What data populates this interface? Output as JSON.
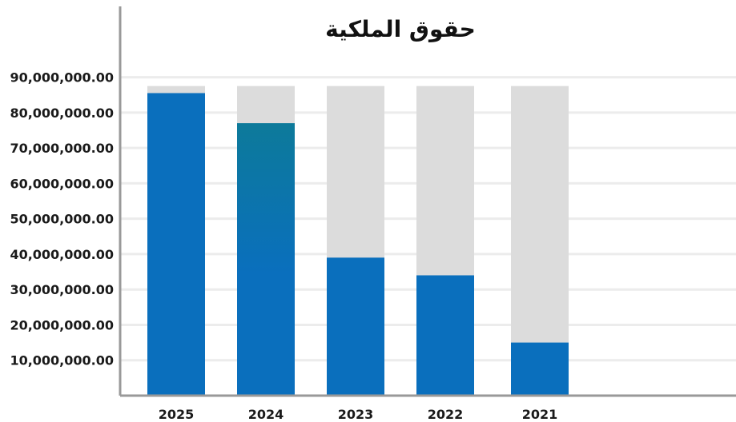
{
  "chart_data": {
    "type": "bar",
    "title": "حقوق الملكية",
    "xlabel": "",
    "ylabel": "",
    "categories": [
      "2025",
      "2024",
      "2023",
      "2022",
      "2021"
    ],
    "values": [
      85500000,
      77000000,
      39000000,
      34000000,
      15000000
    ],
    "background_bar_value": 87500000,
    "ylim": [
      0,
      96000000
    ],
    "y_ticks": [
      10000000,
      20000000,
      30000000,
      40000000,
      50000000,
      60000000,
      70000000,
      80000000,
      90000000
    ],
    "y_tick_labels": [
      "10,000,000.00",
      "20,000,000.00",
      "30,000,000.00",
      "40,000,000.00",
      "50,000,000.00",
      "60,000,000.00",
      "70,000,000.00",
      "80,000,000.00",
      "90,000,000.00"
    ],
    "grid": true,
    "legend": "none",
    "colors": {
      "bar": "#0a6fbd",
      "bar_highlight_top": "#0d7a9a",
      "bar_background": "#dcdcdc",
      "grid": "#ececec",
      "axis": "#999999"
    }
  }
}
